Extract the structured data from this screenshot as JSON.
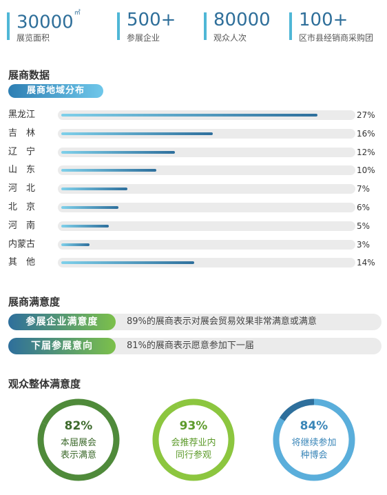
{
  "stats": [
    {
      "value": "30000",
      "sup": "㎡",
      "label": "展览面积"
    },
    {
      "value": "500+",
      "sup": "",
      "label": "参展企业"
    },
    {
      "value": "80000",
      "sup": "",
      "label": "观众人次"
    },
    {
      "value": "100+",
      "sup": "",
      "label": "区市县经销商采购团"
    }
  ],
  "exhibitor_data": {
    "title": "展商数据",
    "tag": "展商地域分布",
    "regions": [
      {
        "name": "黑龙江",
        "pct_label": "27%",
        "value": 27
      },
      {
        "name": "吉　林",
        "pct_label": "16%",
        "value": 16
      },
      {
        "name": "辽　宁",
        "pct_label": "12%",
        "value": 12
      },
      {
        "name": "山　东",
        "pct_label": "10%",
        "value": 10
      },
      {
        "name": "河　北",
        "pct_label": "7%",
        "value": 7
      },
      {
        "name": "北　京",
        "pct_label": "6%",
        "value": 6
      },
      {
        "name": "河　南",
        "pct_label": "5%",
        "value": 5
      },
      {
        "name": "内蒙古",
        "pct_label": "3%",
        "value": 3
      },
      {
        "name": "其　他",
        "pct_label": "14%",
        "value": 14
      }
    ]
  },
  "satisfaction": {
    "title": "展商满意度",
    "rows": [
      {
        "label": "参展企业满意度",
        "desc": "89%的展商表示对展会贸易效果非常满意或满意",
        "color_from": "#2e6f9c",
        "color_to": "#7cc04a"
      },
      {
        "label": "下届参展意向",
        "desc": "81%的展商表示愿意参加下一届",
        "color_from": "#2e6f9c",
        "color_to": "#7cc04a"
      }
    ]
  },
  "audience": {
    "title": "观众整体满意度",
    "circles": [
      {
        "pct": "82%",
        "value": 82,
        "line1": "本届展会",
        "line2": "表示满意",
        "color": "#4f8a3a",
        "track": "#4f8a3a",
        "text_color": "#3d6a2c"
      },
      {
        "pct": "93%",
        "value": 93,
        "line1": "会推荐业内",
        "line2": "同行参观",
        "color": "#8cc63f",
        "track": "#8cc63f",
        "text_color": "#5c9a2a"
      },
      {
        "pct": "84%",
        "value": 84,
        "line1": "将继续参加",
        "line2": "种博会",
        "color": "#5aaedb",
        "track": "#2e6f9c",
        "text_color": "#3a86b8"
      }
    ]
  }
}
